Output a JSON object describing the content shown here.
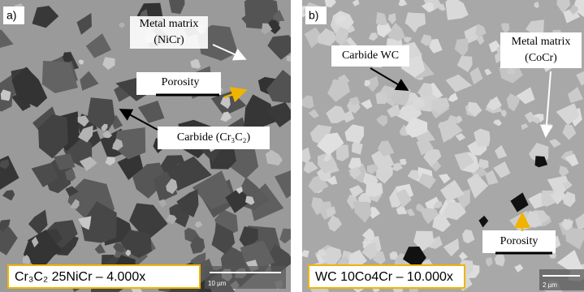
{
  "panels": [
    {
      "tag": "a)",
      "labels": {
        "matrix": [
          "Metal matrix",
          "(NiCr)"
        ],
        "porosity": "Porosity",
        "carbide": "Carbide (Cr₃C₂)"
      },
      "caption": "Cr₃C₂ 25NiCr – 4.000x",
      "scale": "10 µm"
    },
    {
      "tag": "b)",
      "labels": {
        "carbide": "Carbide WC",
        "matrix": [
          "Metal matrix",
          "(CoCr)"
        ],
        "porosity": "Porosity"
      },
      "caption": "WC 10Co4Cr – 10.000x",
      "scale": "2 µm"
    }
  ]
}
